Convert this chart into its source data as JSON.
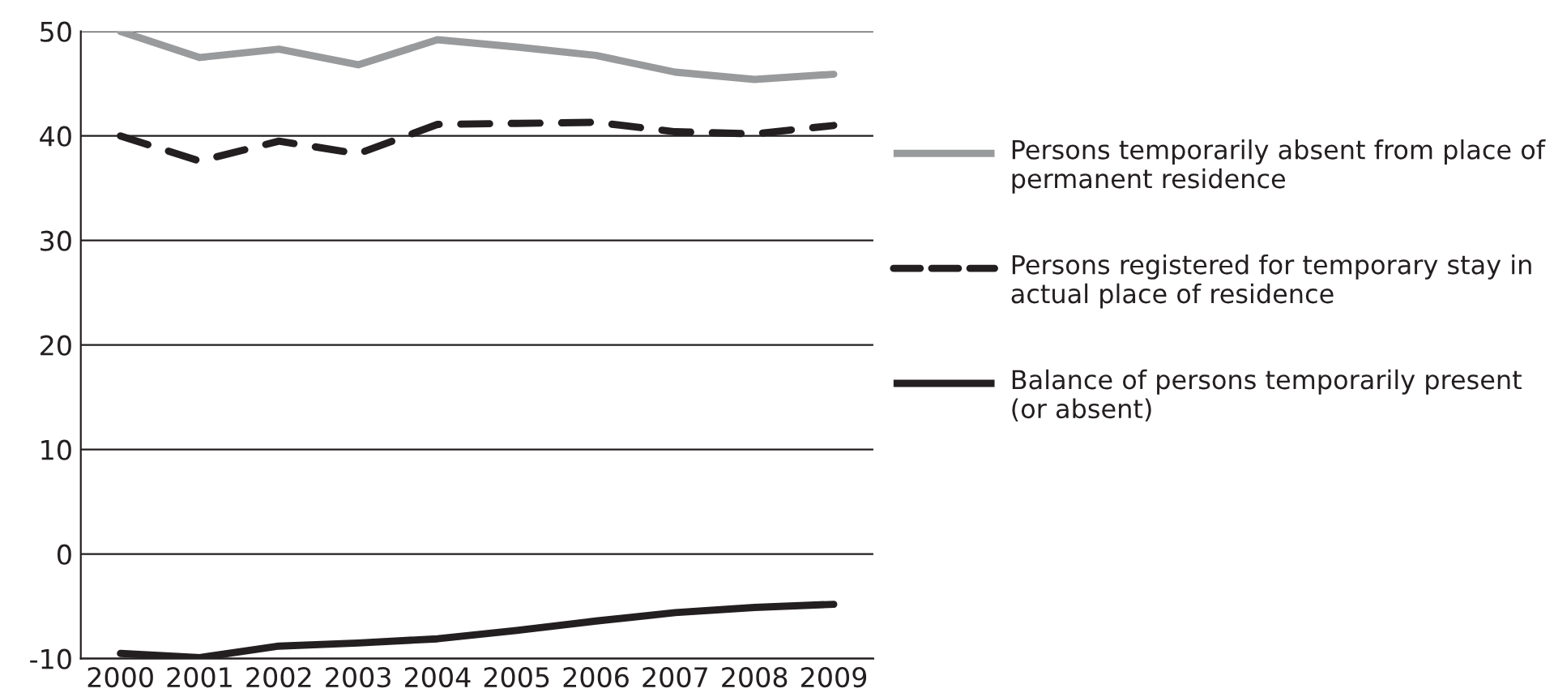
{
  "chart_data": {
    "type": "line",
    "categories": [
      "2000",
      "2001",
      "2002",
      "2003",
      "2004",
      "2005",
      "2006",
      "2007",
      "2008",
      "2009"
    ],
    "series": [
      {
        "name": "Persons temporarily absent from place of permanent residence",
        "color": "#999a9c",
        "line_style": "solid",
        "values": [
          50.0,
          47.5,
          48.3,
          46.8,
          49.2,
          48.5,
          47.7,
          46.1,
          45.4,
          45.9
        ]
      },
      {
        "name": "Persons registered for temporary stay in actual place of residence",
        "color": "#231f20",
        "line_style": "dashed",
        "values": [
          40.0,
          37.6,
          39.5,
          38.3,
          41.1,
          41.2,
          41.3,
          40.4,
          40.2,
          41.0
        ]
      },
      {
        "name": "Balance of persons temporarily present (or absent)",
        "color": "#231f20",
        "line_style": "solid",
        "values": [
          -9.5,
          -9.9,
          -8.8,
          -8.5,
          -8.1,
          -7.3,
          -6.4,
          -5.6,
          -5.1,
          -4.8
        ]
      }
    ],
    "ylim": [
      -10,
      50
    ],
    "yticks": [
      -10,
      0,
      10,
      20,
      30,
      40,
      50
    ],
    "grid": "y",
    "legend": "right",
    "marker": "none"
  }
}
